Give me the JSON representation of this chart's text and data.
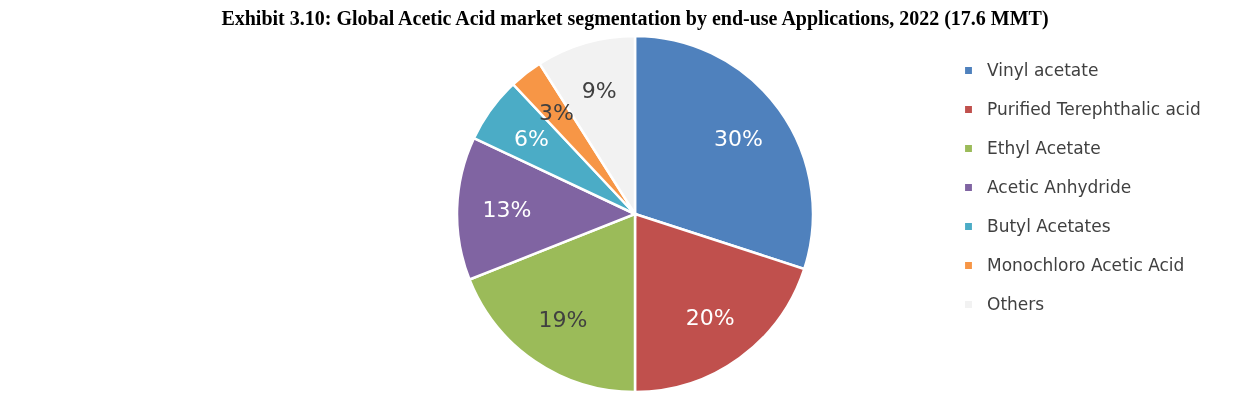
{
  "chart_data": {
    "type": "pie",
    "title": "Exhibit 3.10: Global Acetic Acid market segmentation by end-use Applications, 2022 (17.6 MMT)",
    "categories": [
      "Vinyl acetate",
      "Purified Terephthalic acid",
      "Ethyl Acetate",
      "Acetic Anhydride",
      "Butyl Acetates",
      "Monochloro Acetic Acid",
      "Others"
    ],
    "values": [
      30,
      20,
      19,
      13,
      6,
      3,
      9
    ],
    "value_labels": [
      "30%",
      "20%",
      "19%",
      "13%",
      "6%",
      "3%",
      "9%"
    ],
    "colors": [
      "#4f81bd",
      "#c0504d",
      "#9bbb59",
      "#8064a2",
      "#4bacc6",
      "#f79646",
      "#f2f2f2"
    ],
    "legend": "right"
  }
}
